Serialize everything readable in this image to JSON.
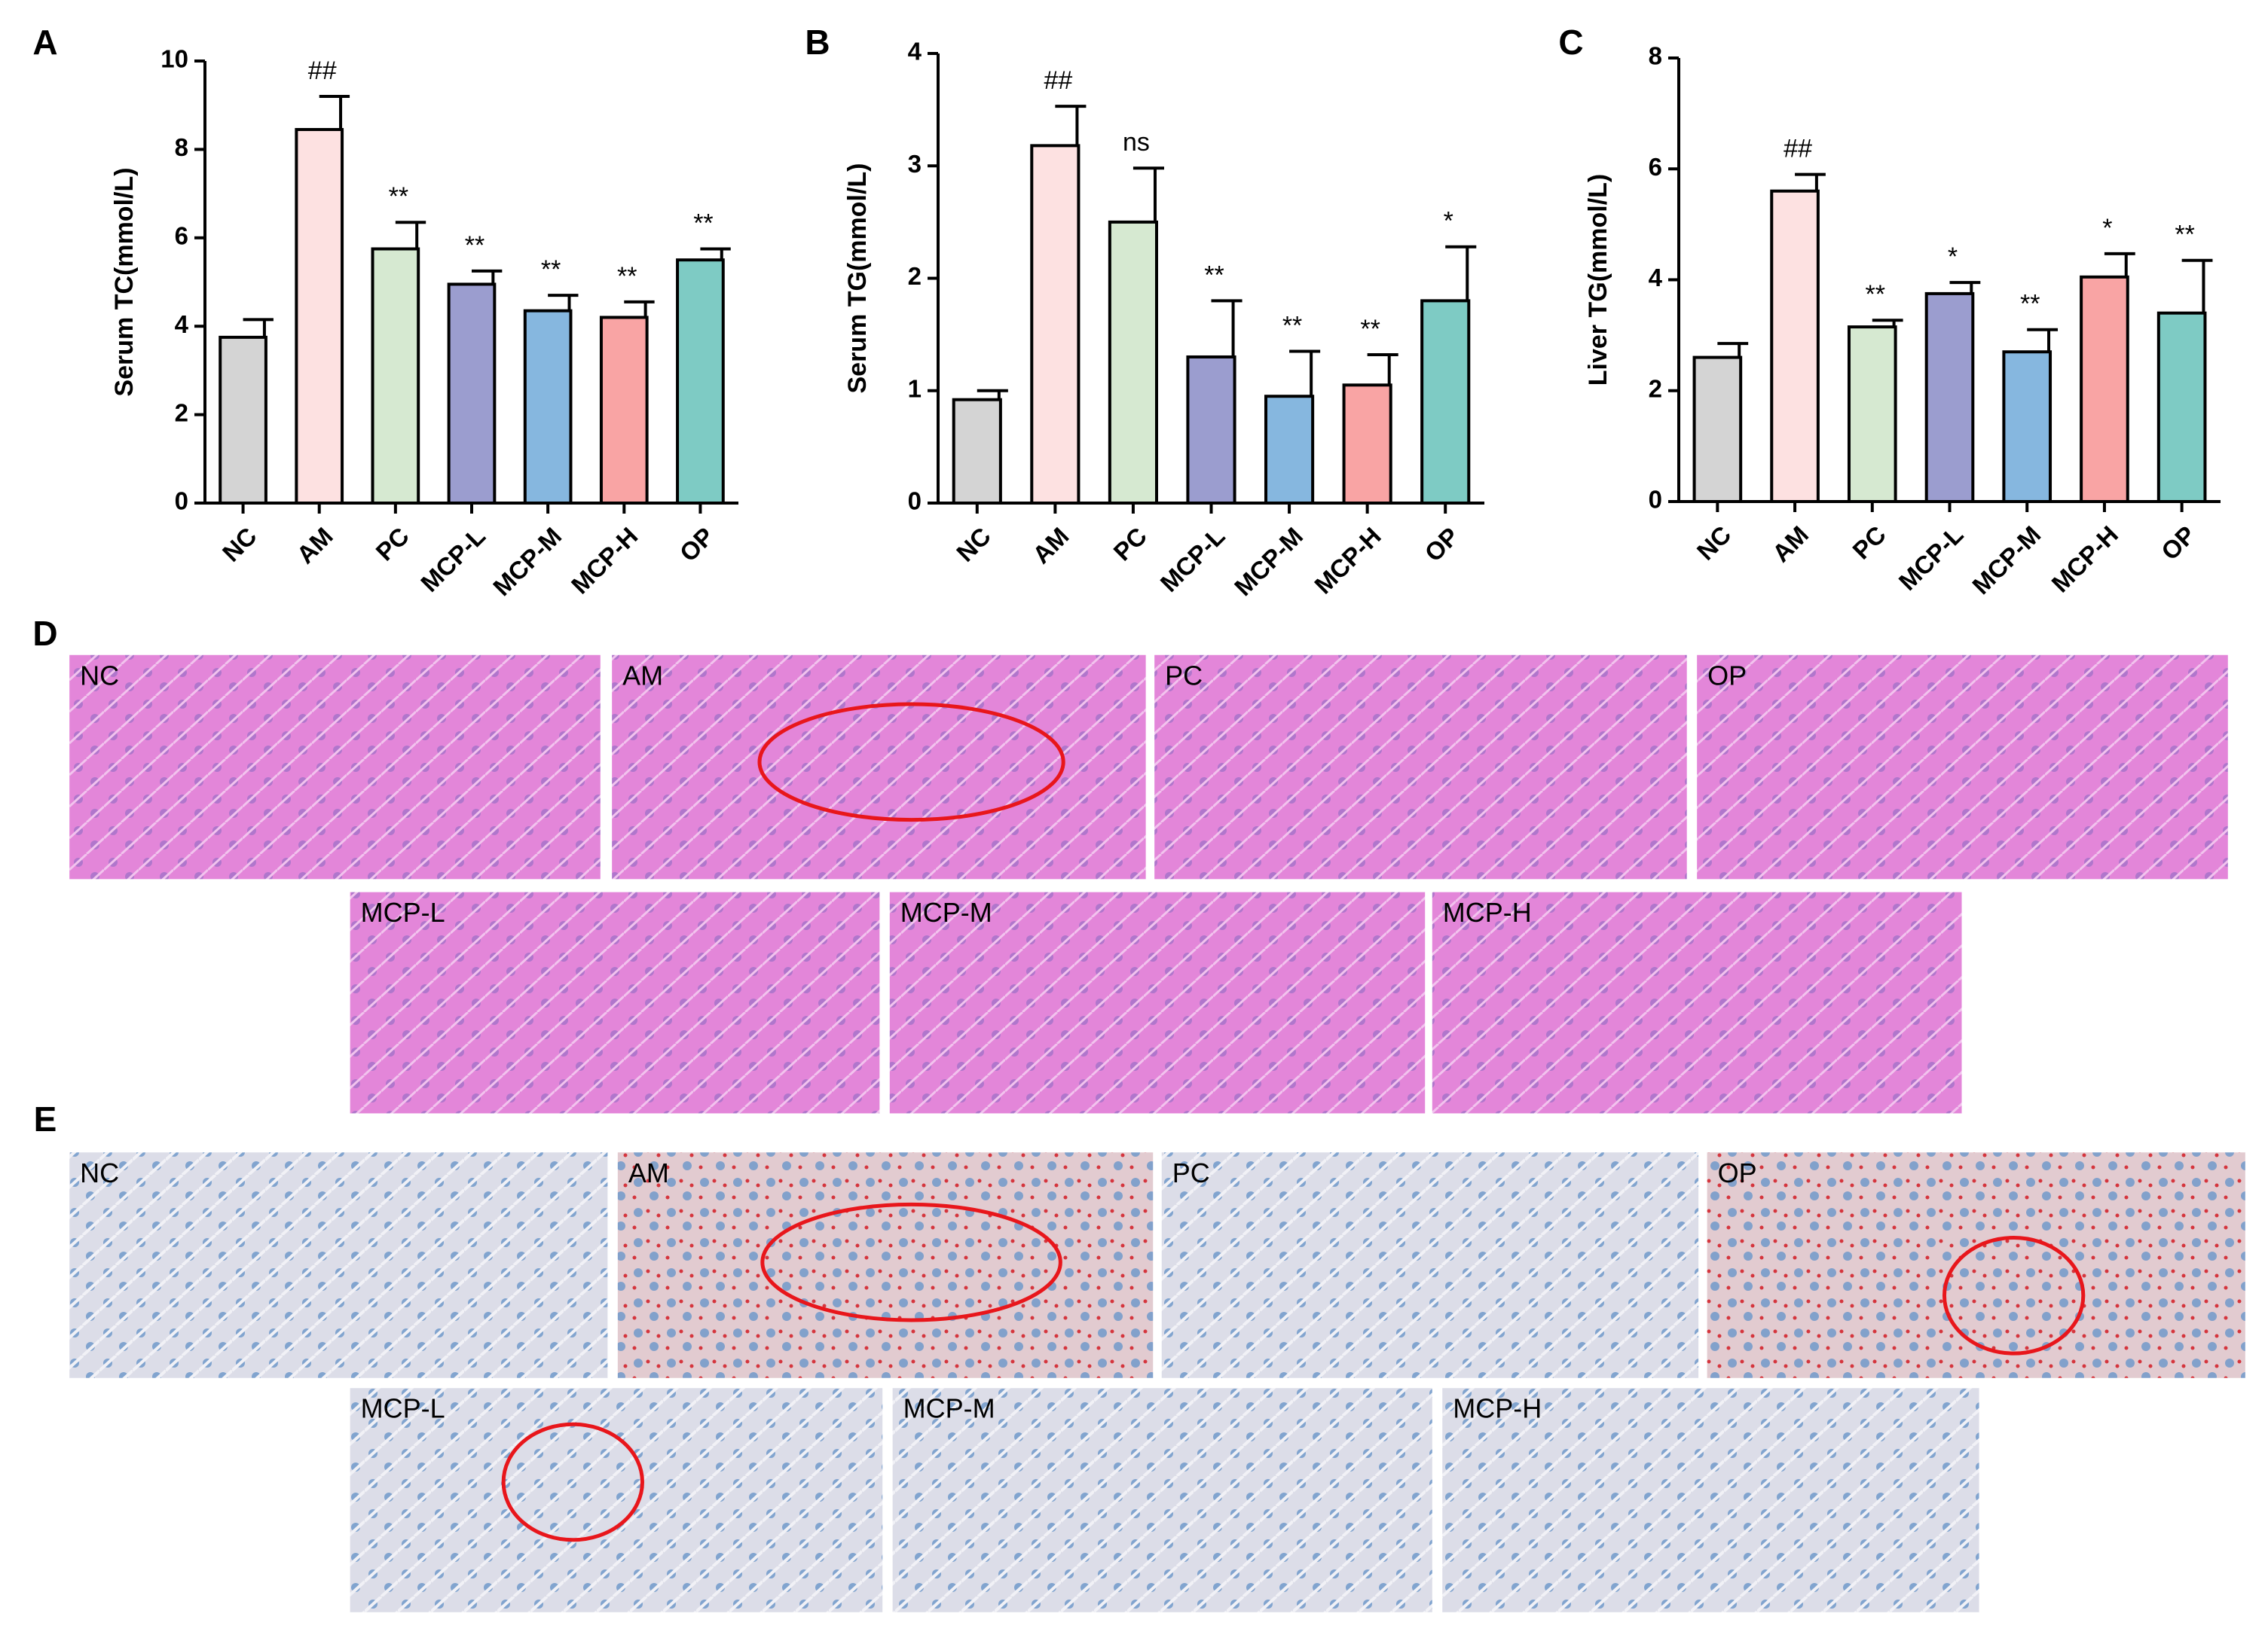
{
  "chart_data": [
    {
      "type": "bar",
      "panel": "A",
      "ylabel": "Serum TC(mmol/L)",
      "categories": [
        "NC",
        "AM",
        "PC",
        "MCP-L",
        "MCP-M",
        "MCP-H",
        "OP"
      ],
      "values": [
        3.75,
        8.45,
        5.75,
        4.95,
        4.35,
        4.2,
        5.5
      ],
      "errors": [
        0.4,
        0.75,
        0.6,
        0.3,
        0.35,
        0.35,
        0.25
      ],
      "annotations": [
        null,
        "##",
        "**",
        "**",
        "**",
        "**",
        "**"
      ],
      "colors": [
        "#d4d4d4",
        "#fde1e1",
        "#d6e9d1",
        "#9b9dcf",
        "#86b7df",
        "#f9a4a4",
        "#7ecbc4"
      ],
      "ylim": [
        0,
        10
      ],
      "yticks": [
        0,
        2,
        4,
        6,
        8,
        10
      ]
    },
    {
      "type": "bar",
      "panel": "B",
      "ylabel": "Serum TG(mmol/L)",
      "categories": [
        "NC",
        "AM",
        "PC",
        "MCP-L",
        "MCP-M",
        "MCP-H",
        "OP"
      ],
      "values": [
        0.92,
        3.18,
        2.5,
        1.3,
        0.95,
        1.05,
        1.8
      ],
      "errors": [
        0.08,
        0.35,
        0.48,
        0.5,
        0.4,
        0.27,
        0.48
      ],
      "annotations": [
        null,
        "##",
        "ns",
        "**",
        "**",
        "**",
        "*"
      ],
      "colors": [
        "#d4d4d4",
        "#fde1e1",
        "#d6e9d1",
        "#9b9dcf",
        "#86b7df",
        "#f9a4a4",
        "#7ecbc4"
      ],
      "ylim": [
        0,
        4
      ],
      "yticks": [
        0,
        1,
        2,
        3,
        4
      ]
    },
    {
      "type": "bar",
      "panel": "C",
      "ylabel": "Liver TG(mmol/L)",
      "categories": [
        "NC",
        "AM",
        "PC",
        "MCP-L",
        "MCP-M",
        "MCP-H",
        "OP"
      ],
      "values": [
        2.6,
        5.6,
        3.15,
        3.75,
        2.7,
        4.05,
        3.4
      ],
      "errors": [
        0.25,
        0.3,
        0.12,
        0.2,
        0.4,
        0.42,
        0.95
      ],
      "annotations": [
        null,
        "##",
        "**",
        "*",
        "**",
        "*",
        "**"
      ],
      "colors": [
        "#d4d4d4",
        "#fde1e1",
        "#d6e9d1",
        "#9b9dcf",
        "#86b7df",
        "#f9a4a4",
        "#7ecbc4"
      ],
      "ylim": [
        0,
        8
      ],
      "yticks": [
        0,
        2,
        4,
        6,
        8
      ]
    }
  ],
  "histology": [
    {
      "panel": "D",
      "labels": [
        "NC",
        "AM",
        "PC",
        "OP",
        "MCP-L",
        "MCP-M",
        "MCP-H"
      ]
    },
    {
      "panel": "E",
      "labels": [
        "NC",
        "AM",
        "PC",
        "OP",
        "MCP-L",
        "MCP-M",
        "MCP-H"
      ]
    }
  ]
}
